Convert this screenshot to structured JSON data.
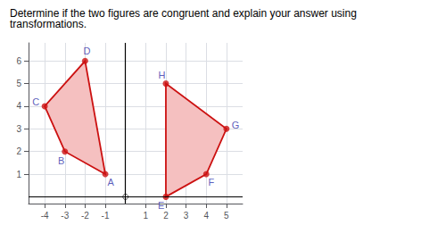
{
  "chart_data": {
    "type": "polygon",
    "title": "Determine if the two figures are congruent and explain your answer using transformations.",
    "xlim": [
      -4.8,
      5.8
    ],
    "ylim": [
      -0.3,
      6.8
    ],
    "xticks": [
      -4,
      -3,
      -2,
      -1,
      1,
      2,
      3,
      4,
      5
    ],
    "yticks": [
      1,
      2,
      3,
      4,
      5,
      6
    ],
    "grid": true,
    "origin": [
      0,
      0
    ],
    "polygons": [
      {
        "color": "#cc1111",
        "fill": "#f5c0c0",
        "label_color": "#3333aa",
        "points": [
          [
            -1,
            1
          ],
          [
            -3,
            2
          ],
          [
            -4,
            4
          ],
          [
            -2,
            6
          ]
        ],
        "labels": [
          "A",
          "B",
          "C",
          "D"
        ]
      },
      {
        "color": "#cc1111",
        "fill": "#f5c0c0",
        "label_color": "#3333aa",
        "points": [
          [
            2,
            0
          ],
          [
            4,
            1
          ],
          [
            5,
            3
          ],
          [
            2,
            5
          ]
        ],
        "labels": [
          "E",
          "F",
          "G",
          "H"
        ]
      }
    ]
  }
}
